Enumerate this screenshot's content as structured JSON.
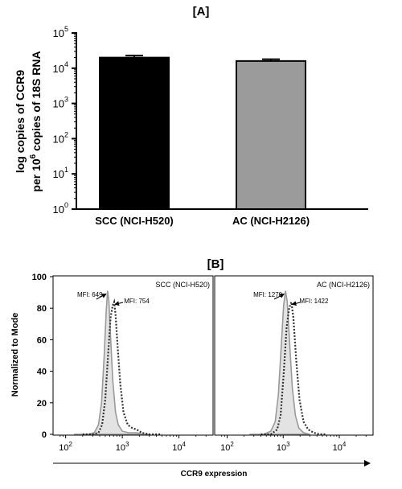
{
  "chart_data": [
    {
      "panel_label": "[A]",
      "type": "bar",
      "ylabel_line1": "log copies of CCR9",
      "ylabel_line2_pre": "per 10",
      "ylabel_line2_sup": "6",
      "ylabel_line2_post": " copies of 18S RNA",
      "yscale": "log",
      "ylim": [
        1,
        100000
      ],
      "yticks": [
        {
          "base": "10",
          "exp": "0",
          "value": 1
        },
        {
          "base": "10",
          "exp": "1",
          "value": 10
        },
        {
          "base": "10",
          "exp": "2",
          "value": 100
        },
        {
          "base": "10",
          "exp": "3",
          "value": 1000
        },
        {
          "base": "10",
          "exp": "4",
          "value": 10000
        },
        {
          "base": "10",
          "exp": "5",
          "value": 100000
        }
      ],
      "categories": [
        "SCC (NCI-H520)",
        "AC (NCI-H2126)"
      ],
      "values": [
        20000,
        16000
      ],
      "errors": [
        3000,
        2000
      ],
      "colors": [
        "#000000",
        "#9b9b9b"
      ]
    },
    {
      "panel_label": "[B]",
      "type": "line",
      "ylabel": "Normalized to Mode",
      "xlabel": "CCR9 expression",
      "xscale": "log",
      "ylim": [
        0,
        100
      ],
      "yticks": [
        0,
        20,
        40,
        60,
        80,
        100
      ],
      "xticks": [
        {
          "base": "10",
          "exp": "2",
          "value": 100
        },
        {
          "base": "10",
          "exp": "3",
          "value": 1000
        },
        {
          "base": "10",
          "exp": "4",
          "value": 10000
        }
      ],
      "panels": [
        {
          "label": "SCC (NCI-H520)",
          "control_mfi": "MFI: 649",
          "stained_mfi": "MFI: 754",
          "control_peak": [
            550,
            91
          ],
          "stained_peak": [
            720,
            84
          ],
          "control_curve": [
            [
              140,
              0
            ],
            [
              250,
              0
            ],
            [
              320,
              1
            ],
            [
              380,
              6
            ],
            [
              430,
              20
            ],
            [
              480,
              50
            ],
            [
              520,
              78
            ],
            [
              550,
              91
            ],
            [
              580,
              85
            ],
            [
              620,
              62
            ],
            [
              680,
              34
            ],
            [
              760,
              14
            ],
            [
              850,
              6
            ],
            [
              1000,
              2
            ],
            [
              1300,
              1
            ],
            [
              1800,
              1
            ],
            [
              2400,
              0
            ],
            [
              3000,
              0
            ]
          ],
          "stained_curve": [
            [
              200,
              0
            ],
            [
              300,
              0
            ],
            [
              380,
              1
            ],
            [
              440,
              6
            ],
            [
              500,
              22
            ],
            [
              560,
              50
            ],
            [
              620,
              74
            ],
            [
              680,
              82
            ],
            [
              720,
              84
            ],
            [
              760,
              76
            ],
            [
              830,
              55
            ],
            [
              920,
              32
            ],
            [
              1050,
              14
            ],
            [
              1250,
              6
            ],
            [
              1500,
              4
            ],
            [
              1800,
              3
            ],
            [
              2200,
              1
            ],
            [
              3000,
              0
            ],
            [
              5000,
              0
            ]
          ]
        },
        {
          "label": "AC (NCI-H2126)",
          "control_mfi": "MFI: 1270",
          "stained_mfi": "MFI: 1422",
          "control_peak": [
            1100,
            91
          ],
          "stained_peak": [
            1400,
            84
          ],
          "control_curve": [
            [
              250,
              0
            ],
            [
              450,
              0
            ],
            [
              600,
              2
            ],
            [
              720,
              8
            ],
            [
              820,
              25
            ],
            [
              920,
              55
            ],
            [
              1020,
              82
            ],
            [
              1100,
              91
            ],
            [
              1180,
              84
            ],
            [
              1300,
              58
            ],
            [
              1450,
              30
            ],
            [
              1650,
              12
            ],
            [
              1900,
              4
            ],
            [
              2300,
              1
            ],
            [
              3000,
              0
            ]
          ],
          "stained_curve": [
            [
              400,
              0
            ],
            [
              600,
              0
            ],
            [
              780,
              3
            ],
            [
              900,
              12
            ],
            [
              1020,
              38
            ],
            [
              1150,
              68
            ],
            [
              1280,
              80
            ],
            [
              1400,
              84
            ],
            [
              1520,
              74
            ],
            [
              1700,
              48
            ],
            [
              1950,
              22
            ],
            [
              2300,
              8
            ],
            [
              2800,
              3
            ],
            [
              3500,
              1
            ],
            [
              4500,
              0
            ],
            [
              6000,
              0
            ]
          ]
        }
      ]
    }
  ]
}
